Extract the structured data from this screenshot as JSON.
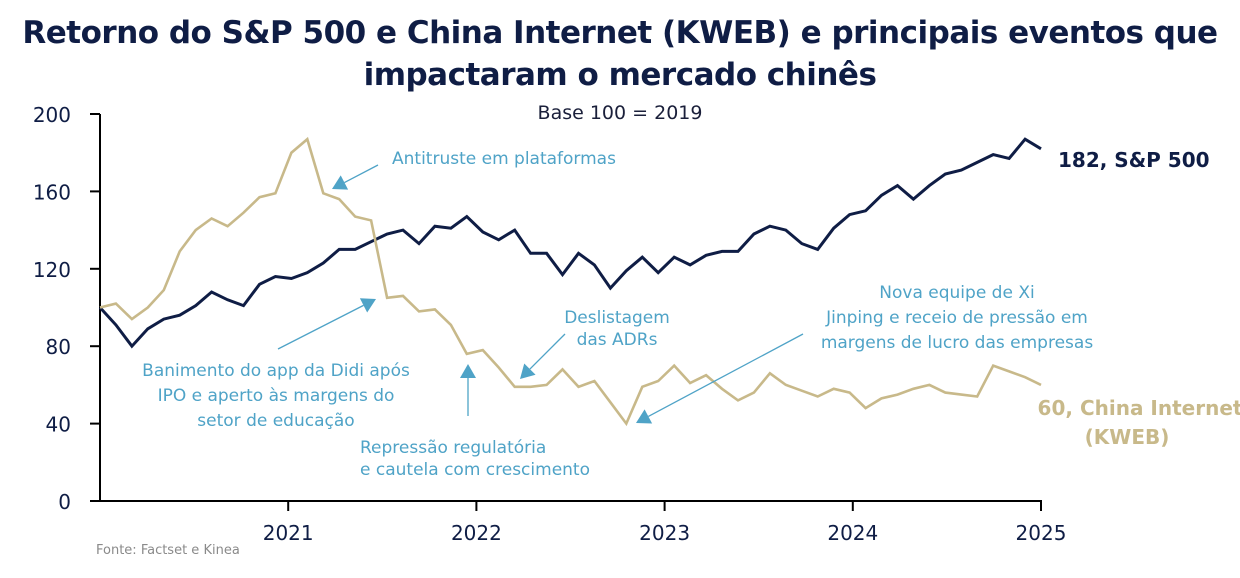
{
  "header": {
    "title_line1": "Retorno do S&P 500 e China Internet (KWEB) e principais eventos que",
    "title_line2": "impactaram o mercado chinês",
    "subtitle": "Base 100 = 2019"
  },
  "source": "Fonte: Factset e Kinea",
  "colors": {
    "title": "#0f1d45",
    "sp500": "#0f1d45",
    "kweb": "#c8b98a",
    "annotation": "#4fa3c7",
    "axis": "#000000"
  },
  "chart_data": {
    "type": "line",
    "title": "Retorno do S&P 500 e China Internet (KWEB) e principais eventos que impactaram o mercado chinês",
    "subtitle": "Base 100 = 2019",
    "xlabel": "",
    "ylabel": "",
    "x_start": "2020-01",
    "x_frequency": "monthly",
    "x_range": [
      2020.0,
      2025.0
    ],
    "ylim": [
      0,
      200
    ],
    "yticks": [
      0,
      40,
      80,
      120,
      160,
      200
    ],
    "xticks": [
      {
        "value": 2021,
        "label": "2021"
      },
      {
        "value": 2022,
        "label": "2022"
      },
      {
        "value": 2023,
        "label": "2023"
      },
      {
        "value": 2024,
        "label": "2024"
      },
      {
        "value": 2025,
        "label": "2025"
      }
    ],
    "grid": false,
    "legend": "end-labels",
    "series": [
      {
        "name": "S&P 500",
        "end_label": "182, S&P 500",
        "color": "#0f1d45",
        "values": [
          100,
          91,
          80,
          89,
          94,
          96,
          101,
          108,
          104,
          101,
          112,
          116,
          115,
          118,
          123,
          130,
          130,
          134,
          138,
          140,
          133,
          142,
          141,
          147,
          139,
          135,
          140,
          128,
          128,
          117,
          128,
          122,
          110,
          119,
          126,
          118,
          126,
          122,
          127,
          129,
          129,
          138,
          142,
          140,
          133,
          130,
          141,
          148,
          150,
          158,
          163,
          156,
          163,
          169,
          171,
          175,
          179,
          177,
          187,
          182
        ]
      },
      {
        "name": "China Internet (KWEB)",
        "end_label_line1": "60, China Internet",
        "end_label_line2": "(KWEB)",
        "color": "#c8b98a",
        "values": [
          100,
          102,
          94,
          100,
          109,
          129,
          140,
          146,
          142,
          149,
          157,
          159,
          180,
          187,
          159,
          156,
          147,
          145,
          105,
          106,
          98,
          99,
          91,
          76,
          78,
          69,
          59,
          59,
          60,
          68,
          59,
          62,
          51,
          40,
          59,
          62,
          70,
          61,
          65,
          58,
          52,
          56,
          66,
          60,
          57,
          54,
          58,
          56,
          48,
          53,
          55,
          58,
          60,
          56,
          55,
          54,
          70,
          67,
          64,
          60
        ]
      }
    ],
    "annotations": [
      {
        "text": [
          "Antitruste em plataformas"
        ],
        "target_date": 2021.33,
        "target_series": "KWEB"
      },
      {
        "text": [
          "Banimento do app da Didi após",
          "IPO e aperto às margens do",
          "setor de educação"
        ],
        "target_date": 2021.5,
        "target_series": "KWEB"
      },
      {
        "text": [
          "Repressão regulatória",
          "e cautela com crescimento"
        ],
        "target_date": 2022.0,
        "target_series": "KWEB"
      },
      {
        "text": [
          "Deslistagem",
          "das ADRs"
        ],
        "target_date": 2022.25,
        "target_series": "KWEB"
      },
      {
        "text": [
          "Nova equipe de Xi",
          "Jinping e receio de pressão em",
          "margens de lucro das empresas"
        ],
        "target_date": 2022.92,
        "target_series": "KWEB"
      }
    ]
  }
}
